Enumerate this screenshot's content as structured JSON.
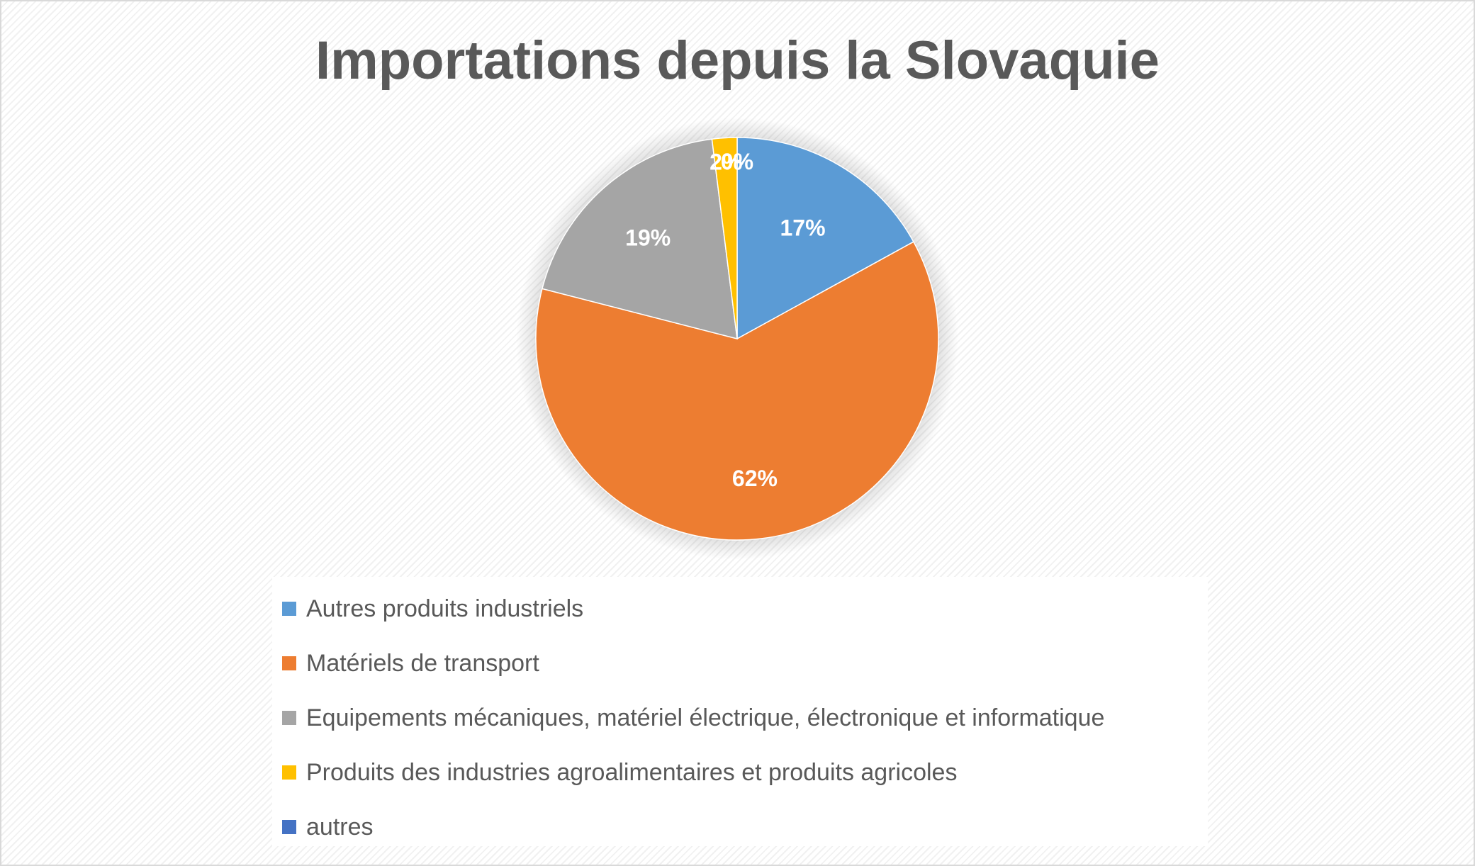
{
  "chart_data": {
    "type": "pie",
    "title": "Importations depuis la Slovaquie",
    "categories": [
      "Autres produits industriels",
      "Matériels de transport",
      "Equipements mécaniques, matériel électrique, électronique et informatique",
      "Produits des industries agroalimentaires et produits agricoles",
      "autres"
    ],
    "values": [
      17,
      62,
      19,
      2,
      0
    ],
    "labels": [
      "17%",
      "62%",
      "19%",
      "2%",
      "0%"
    ],
    "colors": [
      "#5b9bd5",
      "#ed7d31",
      "#a5a5a5",
      "#ffc000",
      "#4472c4"
    ],
    "legend_position": "bottom"
  }
}
